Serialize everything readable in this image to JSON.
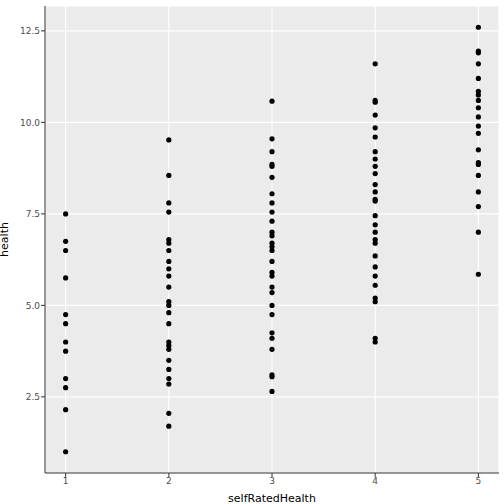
{
  "chart_data": {
    "type": "scatter",
    "x_label": "selfRatedHealth",
    "y_label": "health",
    "series": [
      {
        "name": "health",
        "color": "#000000",
        "marker": "circle",
        "x": [
          1,
          1,
          1,
          1,
          1,
          1,
          1,
          1,
          1,
          1,
          1,
          1,
          2,
          2,
          2,
          2,
          2,
          2,
          2,
          2,
          2,
          2,
          2,
          2,
          2,
          2,
          2,
          2,
          2,
          2,
          2,
          2,
          2,
          2,
          2,
          2,
          3,
          3,
          3,
          3,
          3,
          3,
          3,
          3,
          3,
          3,
          3,
          3,
          3,
          3,
          3,
          3,
          3,
          3,
          3,
          3,
          3,
          3,
          3,
          3,
          3,
          3,
          3,
          3,
          4,
          4,
          4,
          4,
          4,
          4,
          4,
          4,
          4,
          4,
          4,
          4,
          4,
          4,
          4,
          4,
          4,
          4,
          4,
          4,
          4,
          4,
          4,
          4,
          4,
          4,
          4,
          5,
          5,
          5,
          5,
          5,
          5,
          5,
          5,
          5,
          5,
          5,
          5,
          5,
          5,
          5,
          5,
          5,
          5,
          5,
          5
        ],
        "values": [
          7.5,
          6.75,
          6.5,
          5.75,
          4.75,
          4.5,
          4.0,
          3.75,
          3.0,
          2.75,
          2.15,
          1.0,
          9.52,
          8.55,
          7.8,
          7.55,
          6.8,
          6.7,
          6.5,
          6.2,
          6.0,
          5.8,
          5.5,
          5.1,
          5.0,
          4.8,
          4.5,
          4.0,
          3.9,
          3.8,
          3.5,
          3.25,
          3.0,
          2.85,
          2.05,
          1.7,
          10.58,
          9.55,
          9.2,
          8.85,
          8.8,
          8.5,
          8.05,
          7.8,
          7.55,
          7.3,
          7.0,
          6.9,
          6.7,
          6.6,
          6.5,
          6.2,
          5.9,
          5.8,
          5.5,
          5.35,
          5.0,
          4.75,
          4.25,
          4.1,
          3.8,
          3.1,
          3.05,
          2.65,
          11.6,
          10.6,
          10.55,
          10.2,
          9.85,
          9.6,
          9.2,
          9.0,
          8.8,
          8.6,
          8.3,
          8.1,
          7.9,
          7.85,
          7.45,
          7.2,
          7.0,
          6.8,
          6.7,
          6.35,
          6.05,
          5.8,
          5.55,
          5.2,
          5.1,
          4.1,
          4.0,
          12.6,
          11.95,
          11.9,
          11.6,
          11.2,
          10.85,
          10.75,
          10.6,
          10.4,
          10.15,
          9.9,
          9.7,
          9.25,
          8.9,
          8.85,
          8.55,
          8.1,
          7.7,
          7.0,
          5.85
        ]
      }
    ],
    "xlim": [
      0.8,
      5.2
    ],
    "xticks": [
      1,
      2,
      3,
      4,
      5
    ],
    "ylim": [
      0.42,
      13.18
    ],
    "yticks": [
      2.5,
      {
        "value": 5,
        "label": "5.0"
      },
      7.5,
      {
        "value": 10,
        "label": "10.0"
      },
      12.5
    ],
    "grid": true
  }
}
